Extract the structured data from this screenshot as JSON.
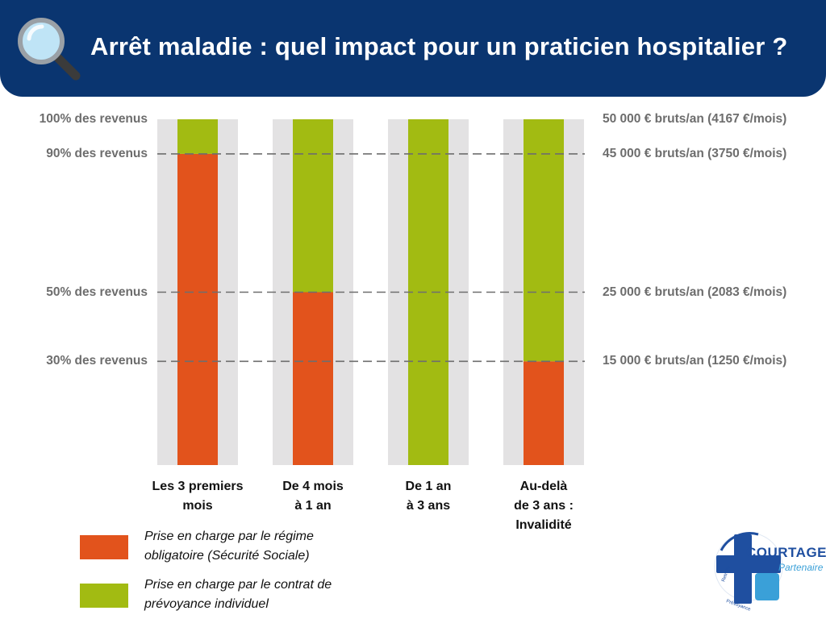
{
  "header": {
    "title": "Arrêt maladie : quel impact pour un praticien hospitalier ?",
    "background": "#0a3570"
  },
  "icons": {
    "header_icon": "magnifying-glass-icon",
    "logo_icon": "courtage-partenaire-cross-logo"
  },
  "chart_data": {
    "type": "bar",
    "stacked": true,
    "categories": [
      [
        "Les 3 premiers",
        "mois"
      ],
      [
        "De 4 mois",
        "à 1 an"
      ],
      [
        "De 1 an",
        "à 3 ans"
      ],
      [
        "Au-delà",
        "de 3 ans :",
        "Invalidité"
      ]
    ],
    "series": [
      {
        "name": "Prise en charge par le régime obligatoire (Sécurité Sociale)",
        "color": "#e2531c",
        "values": [
          90,
          50,
          0,
          30
        ]
      },
      {
        "name": "Prise en charge par le contrat de prévoyance individuel",
        "color": "#a2bb12",
        "values": [
          10,
          50,
          100,
          70
        ]
      }
    ],
    "ylim": [
      0,
      100
    ],
    "y_ticks_left": [
      {
        "value": 100,
        "label": "100% des revenus"
      },
      {
        "value": 90,
        "label": "90% des revenus"
      },
      {
        "value": 50,
        "label": "50% des revenus"
      },
      {
        "value": 30,
        "label": "30% des revenus"
      }
    ],
    "y_ticks_right": [
      {
        "value": 100,
        "label": "50 000 € bruts/an (4167 €/mois)"
      },
      {
        "value": 90,
        "label": "45 000 € bruts/an (3750 €/mois)"
      },
      {
        "value": 50,
        "label": "25 000 € bruts/an (2083 €/mois)"
      },
      {
        "value": 30,
        "label": "15 000 € bruts/an (1250 €/mois)"
      }
    ],
    "dashed_gridlines_at": [
      90,
      50,
      30
    ],
    "legend_position": "bottom-left",
    "bar_background_color": "#e3e2e3"
  },
  "legend": [
    {
      "lines": [
        "Prise en charge par le régime",
        "obligatoire (Sécurité Sociale)"
      ],
      "color": "#e2531c"
    },
    {
      "lines": [
        "Prise en charge par le contrat de",
        "prévoyance individuel"
      ],
      "color": "#a2bb12"
    }
  ],
  "logo": {
    "name": "COURTAGE",
    "sub": "Partenaire",
    "ring_text": [
      "Retraite",
      "Prévoyance"
    ]
  }
}
